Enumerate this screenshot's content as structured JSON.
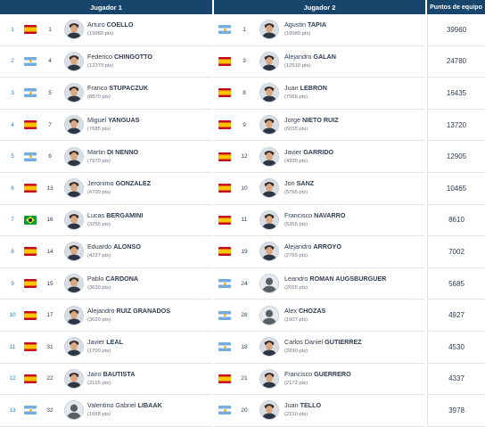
{
  "headers": {
    "player1": "Jugador 1",
    "player2": "Jugador 2",
    "points": "Puntos de equipo"
  },
  "rows": [
    {
      "pos": "1",
      "points": "39960",
      "p1": {
        "flag": "es",
        "rank": "1",
        "first": "Arturo",
        "last": "COELLO",
        "pts": "(19980 pts)",
        "avatar": "photo"
      },
      "p2": {
        "flag": "ar",
        "rank": "1",
        "first": "Agustin",
        "last": "TAPIA",
        "pts": "(19980 pts)",
        "avatar": "photo"
      }
    },
    {
      "pos": "2",
      "points": "24780",
      "p1": {
        "flag": "ar",
        "rank": "4",
        "first": "Federico",
        "last": "CHINGOTTO",
        "pts": "(12270 pts)",
        "avatar": "photo"
      },
      "p2": {
        "flag": "es",
        "rank": "3",
        "first": "Alejandro",
        "last": "GALAN",
        "pts": "(12510 pts)",
        "avatar": "photo"
      }
    },
    {
      "pos": "3",
      "points": "16435",
      "p1": {
        "flag": "ar",
        "rank": "5",
        "first": "Franco",
        "last": "STUPACZUK",
        "pts": "(8870 pts)",
        "avatar": "photo"
      },
      "p2": {
        "flag": "es",
        "rank": "8",
        "first": "Juan",
        "last": "LEBRON",
        "pts": "(7565 pts)",
        "avatar": "photo"
      }
    },
    {
      "pos": "4",
      "points": "13720",
      "p1": {
        "flag": "es",
        "rank": "7",
        "first": "Miguel",
        "last": "YANGUAS",
        "pts": "(7685 pts)",
        "avatar": "photo"
      },
      "p2": {
        "flag": "es",
        "rank": "9",
        "first": "Jorge",
        "last": "NIETO RUIZ",
        "pts": "(6035 pts)",
        "avatar": "photo"
      }
    },
    {
      "pos": "5",
      "points": "12905",
      "p1": {
        "flag": "ar",
        "rank": "6",
        "first": "Martin",
        "last": "DI NENNO",
        "pts": "(7970 pts)",
        "avatar": "photo"
      },
      "p2": {
        "flag": "es",
        "rank": "12",
        "first": "Javier",
        "last": "GARRIDO",
        "pts": "(4935 pts)",
        "avatar": "photo"
      }
    },
    {
      "pos": "6",
      "points": "10465",
      "p1": {
        "flag": "es",
        "rank": "13",
        "first": "Jeronimo",
        "last": "GONZALEZ",
        "pts": "(4700 pts)",
        "avatar": "photo"
      },
      "p2": {
        "flag": "es",
        "rank": "10",
        "first": "Jon",
        "last": "SANZ",
        "pts": "(5765 pts)",
        "avatar": "photo"
      }
    },
    {
      "pos": "7",
      "points": "8610",
      "p1": {
        "flag": "br",
        "rank": "16",
        "first": "Lucas",
        "last": "BERGAMINI",
        "pts": "(3255 pts)",
        "avatar": "photo"
      },
      "p2": {
        "flag": "es",
        "rank": "11",
        "first": "Francisco",
        "last": "NAVARRO",
        "pts": "(5355 pts)",
        "avatar": "photo"
      }
    },
    {
      "pos": "8",
      "points": "7002",
      "p1": {
        "flag": "es",
        "rank": "14",
        "first": "Eduardo",
        "last": "ALONSO",
        "pts": "(4237 pts)",
        "avatar": "photo"
      },
      "p2": {
        "flag": "es",
        "rank": "19",
        "first": "Alejandro",
        "last": "ARROYO",
        "pts": "(2765 pts)",
        "avatar": "photo"
      }
    },
    {
      "pos": "9",
      "points": "5685",
      "p1": {
        "flag": "es",
        "rank": "15",
        "first": "Pablo",
        "last": "CARDONA",
        "pts": "(3630 pts)",
        "avatar": "photo"
      },
      "p2": {
        "flag": "ar",
        "rank": "24",
        "first": "Leandro",
        "last": "ROMAN AUGSBURGUER",
        "pts": "(2055 pts)",
        "avatar": "placeholder"
      }
    },
    {
      "pos": "10",
      "points": "4927",
      "p1": {
        "flag": "es",
        "rank": "17",
        "first": "Alejandro",
        "last": "RUIZ GRANADOS",
        "pts": "(3020 pts)",
        "avatar": "photo"
      },
      "p2": {
        "flag": "ar",
        "rank": "28",
        "first": "Alex",
        "last": "CHOZAS",
        "pts": "(1907 pts)",
        "avatar": "placeholder"
      }
    },
    {
      "pos": "11",
      "points": "4530",
      "p1": {
        "flag": "es",
        "rank": "31",
        "first": "Javier",
        "last": "LEAL",
        "pts": "(1700 pts)",
        "avatar": "photo"
      },
      "p2": {
        "flag": "ar",
        "rank": "18",
        "first": "Carlos Daniel",
        "last": "GUTIERREZ",
        "pts": "(2830 pts)",
        "avatar": "photo"
      }
    },
    {
      "pos": "12",
      "points": "4337",
      "p1": {
        "flag": "es",
        "rank": "22",
        "first": "Jairo",
        "last": "BAUTISTA",
        "pts": "(2165 pts)",
        "avatar": "photo"
      },
      "p2": {
        "flag": "es",
        "rank": "21",
        "first": "Francisco",
        "last": "GUERRERO",
        "pts": "(2172 pts)",
        "avatar": "photo"
      }
    },
    {
      "pos": "13",
      "points": "3978",
      "p1": {
        "flag": "ar",
        "rank": "32",
        "first": "Valentino Gabriel",
        "last": "LIBAAK",
        "pts": "(1668 pts)",
        "avatar": "placeholder"
      },
      "p2": {
        "flag": "ar",
        "rank": "20",
        "first": "Juan",
        "last": "TELLO",
        "pts": "(2310 pts)",
        "avatar": "photo"
      }
    }
  ],
  "colors": {
    "header_bg": "#17456b",
    "position_text": "#2a7bc2",
    "row_border": "#dfe3ea"
  }
}
